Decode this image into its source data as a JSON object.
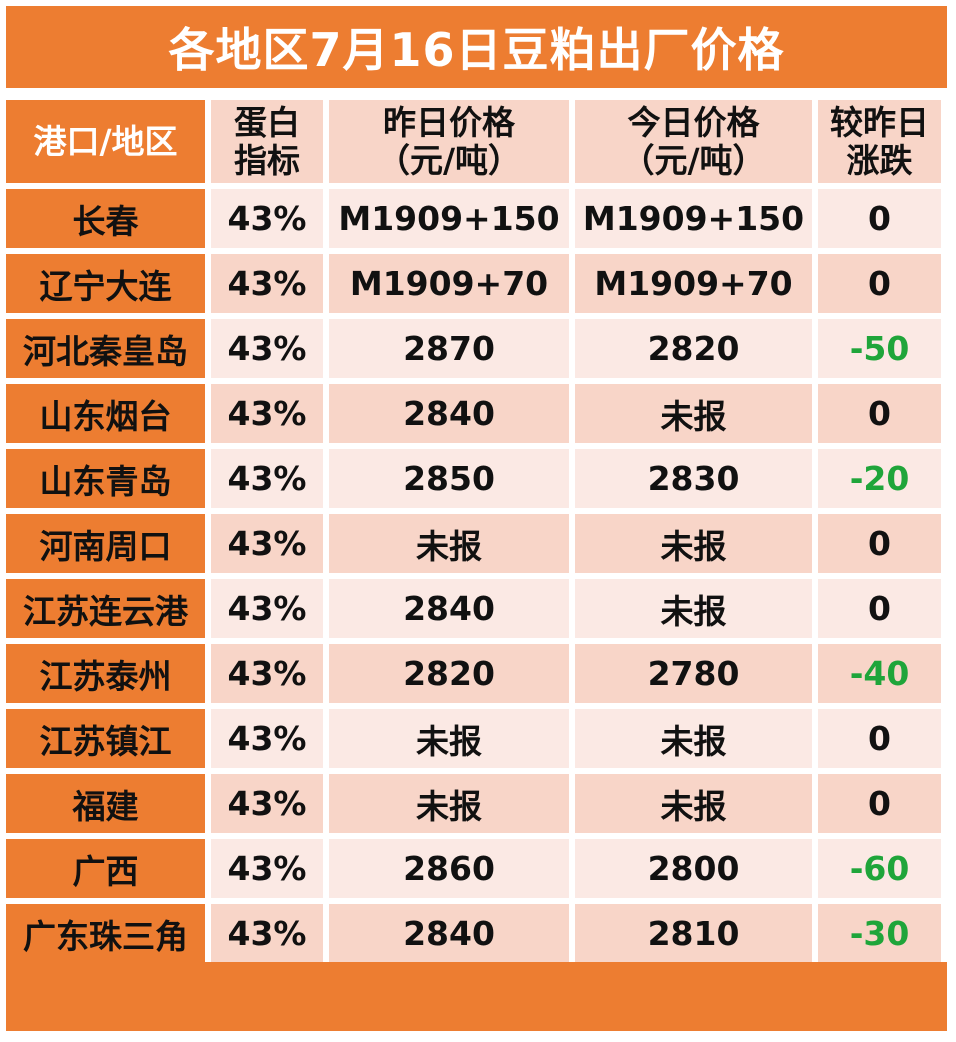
{
  "title": "各地区7月16日豆粕出厂价格",
  "colors": {
    "accent": "#ED7D31",
    "row_dark": "#F8D5C8",
    "row_light": "#FBE9E4",
    "negative": "#1FA53A"
  },
  "chart_data": {
    "type": "table",
    "title": "各地区7月16日豆粕出厂价格",
    "columns": [
      "港口/地区",
      "蛋白指标",
      "昨日价格（元/吨）",
      "今日价格（元/吨）",
      "较昨日涨跌"
    ],
    "header_lines": {
      "region": "港口/地区",
      "protein": [
        "蛋白",
        "指标"
      ],
      "yesterday": [
        "昨日价格",
        "（元/吨）"
      ],
      "today": [
        "今日价格",
        "（元/吨）"
      ],
      "change": [
        "较昨日",
        "涨跌"
      ]
    },
    "rows": [
      {
        "region": "长春",
        "protein": "43%",
        "yesterday": "M1909+150",
        "today": "M1909+150",
        "change": "0"
      },
      {
        "region": "辽宁大连",
        "protein": "43%",
        "yesterday": "M1909+70",
        "today": "M1909+70",
        "change": "0"
      },
      {
        "region": "河北秦皇岛",
        "protein": "43%",
        "yesterday": "2870",
        "today": "2820",
        "change": "-50"
      },
      {
        "region": "山东烟台",
        "protein": "43%",
        "yesterday": "2840",
        "today": "未报",
        "change": "0"
      },
      {
        "region": "山东青岛",
        "protein": "43%",
        "yesterday": "2850",
        "today": "2830",
        "change": "-20"
      },
      {
        "region": "河南周口",
        "protein": "43%",
        "yesterday": "未报",
        "today": "未报",
        "change": "0"
      },
      {
        "region": "江苏连云港",
        "protein": "43%",
        "yesterday": "2840",
        "today": "未报",
        "change": "0"
      },
      {
        "region": "江苏泰州",
        "protein": "43%",
        "yesterday": "2820",
        "today": "2780",
        "change": "-40"
      },
      {
        "region": "江苏镇江",
        "protein": "43%",
        "yesterday": "未报",
        "today": "未报",
        "change": "0"
      },
      {
        "region": "福建",
        "protein": "43%",
        "yesterday": "未报",
        "today": "未报",
        "change": "0"
      },
      {
        "region": "广西",
        "protein": "43%",
        "yesterday": "2860",
        "today": "2800",
        "change": "-60"
      },
      {
        "region": "广东珠三角",
        "protein": "43%",
        "yesterday": "2840",
        "today": "2810",
        "change": "-30"
      }
    ]
  }
}
